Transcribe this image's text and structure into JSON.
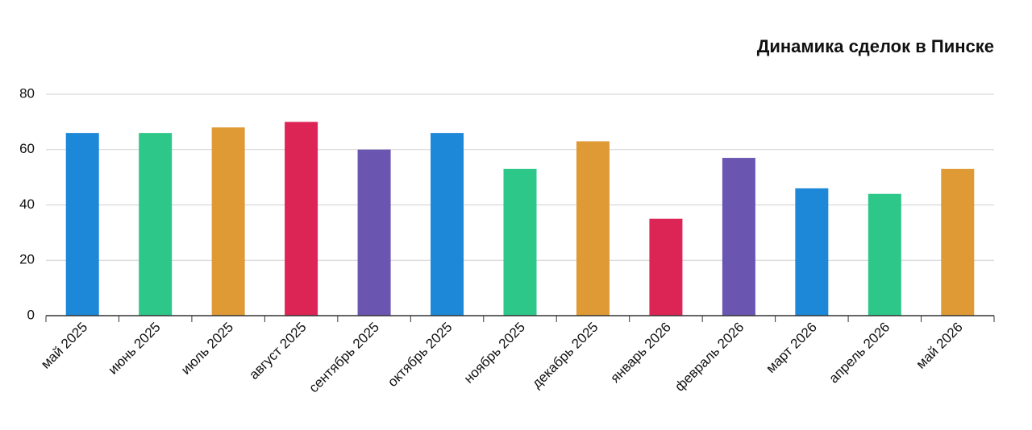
{
  "chart_data": {
    "type": "bar",
    "title": "Динамика сделок в Пинске",
    "categories": [
      "май 2025",
      "июнь 2025",
      "июль 2025",
      "август 2025",
      "сентябрь 2025",
      "октябрь 2025",
      "ноябрь 2025",
      "декабрь 2025",
      "январь 2026",
      "февраль 2026",
      "март 2026",
      "апрель 2026",
      "май 2026"
    ],
    "values": [
      66,
      66,
      68,
      70,
      60,
      66,
      53,
      63,
      35,
      57,
      46,
      44,
      53
    ],
    "colors": [
      "#1e88d8",
      "#2ec78a",
      "#e09a35",
      "#dc2555",
      "#6a55b0",
      "#1e88d8",
      "#2ec78a",
      "#e09a35",
      "#dc2555",
      "#6a55b0",
      "#1e88d8",
      "#2ec78a",
      "#e09a35"
    ],
    "ylim": [
      0,
      80
    ],
    "yticks": [
      0,
      20,
      40,
      60,
      80
    ],
    "grid": true
  }
}
